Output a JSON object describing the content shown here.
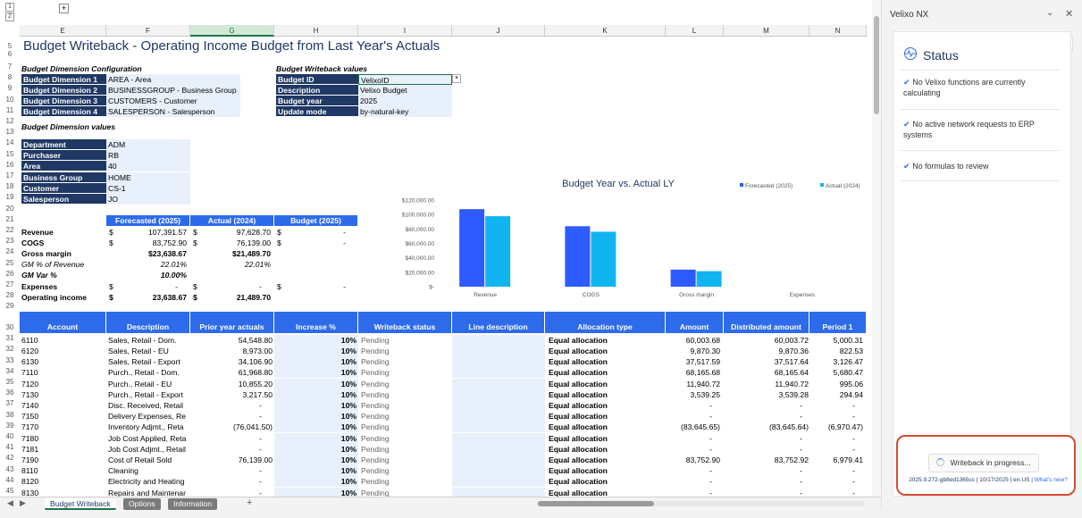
{
  "outline": {
    "level1": "1",
    "level2": "2",
    "expand": "+"
  },
  "columns": [
    "E",
    "F",
    "G",
    "H",
    "I",
    "J",
    "K",
    "L",
    "M",
    "N"
  ],
  "sheet_title": "Budget Writeback - Operating Income Budget from Last Year's Actuals",
  "dim_config": {
    "header": "Budget Dimension Configuration",
    "rows": [
      {
        "label": "Budget Dimension 1",
        "value": "AREA - Area"
      },
      {
        "label": "Budget Dimension 2",
        "value": "BUSINESSGROUP - Business Group"
      },
      {
        "label": "Budget Dimension 3",
        "value": "CUSTOMERS - Customer"
      },
      {
        "label": "Budget Dimension 4",
        "value": "SALESPERSON - Salesperson"
      }
    ]
  },
  "writeback_values": {
    "header": "Budget Writeback values",
    "rows": [
      {
        "label": "Budget ID",
        "value": "VelixoID"
      },
      {
        "label": "Description",
        "value": "Velixo Budget"
      },
      {
        "label": "Budget year",
        "value": "2025"
      },
      {
        "label": "Update mode",
        "value": "by-natural-key"
      }
    ]
  },
  "dim_values": {
    "header": "Budget Dimension values",
    "rows": [
      {
        "label": "Department",
        "value": "ADM"
      },
      {
        "label": "Purchaser",
        "value": "RB"
      },
      {
        "label": "Area",
        "value": "40"
      },
      {
        "label": "Business Group",
        "value": "HOME"
      },
      {
        "label": "Customer",
        "value": "CS-1"
      },
      {
        "label": "Salesperson",
        "value": "JO"
      }
    ]
  },
  "summary": {
    "headers": [
      "Forecasted (2025)",
      "Actual (2024)",
      "Budget (2025)"
    ],
    "currency": "$",
    "rows": [
      {
        "label": "Revenue",
        "f": "107,391.57",
        "a": "97,628.70",
        "b": "-"
      },
      {
        "label": "COGS",
        "f": "83,752.90",
        "a": "76,139.00",
        "b": "-"
      },
      {
        "label": "Gross margin",
        "f": "$23,638.67",
        "a": "$21,489.70",
        "b": ""
      },
      {
        "label": "GM % of Revenue",
        "f": "22.01%",
        "a": "22.01%",
        "b": ""
      },
      {
        "label": "GM Var %",
        "f": "10.00%",
        "a": "",
        "b": ""
      },
      {
        "label": "Expenses",
        "f": "-",
        "a": "-",
        "b": "-"
      },
      {
        "label": "Operating income",
        "f": "23,638.67",
        "a": "21,489.70",
        "b": ""
      }
    ]
  },
  "row_numbers": [
    "5",
    "6",
    "7",
    "8",
    "9",
    "10",
    "11",
    "12",
    "13",
    "14",
    "15",
    "16",
    "17",
    "18",
    "19",
    "20",
    "21",
    "22",
    "23",
    "24",
    "25",
    "26",
    "27",
    "28",
    "29",
    "30",
    "31",
    "32",
    "33",
    "34",
    "35",
    "36",
    "37",
    "38",
    "39",
    "40",
    "41",
    "42",
    "43",
    "44",
    "45"
  ],
  "table": {
    "headers": [
      "Account",
      "Description",
      "Prior year actuals",
      "Increase %",
      "Writeback status",
      "Line description",
      "Allocation type",
      "Amount",
      "Distributed amount",
      "Period 1"
    ],
    "rows": [
      {
        "acct": "6110",
        "desc": "Sales, Retail - Dom.",
        "prior": "54,548.80",
        "inc": "10%",
        "status": "Pending",
        "alloc": "Equal allocation",
        "amt": "60,003.68",
        "dist": "60,003.72",
        "p1": "5,000.31"
      },
      {
        "acct": "6120",
        "desc": "Sales, Retail - EU",
        "prior": "8,973.00",
        "inc": "10%",
        "status": "Pending",
        "alloc": "Equal allocation",
        "amt": "9,870.30",
        "dist": "9,870.36",
        "p1": "822.53"
      },
      {
        "acct": "6130",
        "desc": "Sales, Retail - Export",
        "prior": "34,106.90",
        "inc": "10%",
        "status": "Pending",
        "alloc": "Equal allocation",
        "amt": "37,517.59",
        "dist": "37,517.64",
        "p1": "3,126.47"
      },
      {
        "acct": "7110",
        "desc": "Purch., Retail - Dom.",
        "prior": "61,968.80",
        "inc": "10%",
        "status": "Pending",
        "alloc": "Equal allocation",
        "amt": "68,165.68",
        "dist": "68,165.64",
        "p1": "5,680.47"
      },
      {
        "acct": "7120",
        "desc": "Purch., Retail - EU",
        "prior": "10,855.20",
        "inc": "10%",
        "status": "Pending",
        "alloc": "Equal allocation",
        "amt": "11,940.72",
        "dist": "11,940.72",
        "p1": "995.06"
      },
      {
        "acct": "7130",
        "desc": "Purch., Retail - Export",
        "prior": "3,217.50",
        "inc": "10%",
        "status": "Pending",
        "alloc": "Equal allocation",
        "amt": "3,539.25",
        "dist": "3,539.28",
        "p1": "294.94"
      },
      {
        "acct": "7140",
        "desc": "Disc. Received, Retail",
        "prior": "-",
        "inc": "10%",
        "status": "Pending",
        "alloc": "Equal allocation",
        "amt": "-",
        "dist": "-",
        "p1": "-"
      },
      {
        "acct": "7150",
        "desc": "Delivery Expenses, Re",
        "prior": "-",
        "inc": "10%",
        "status": "Pending",
        "alloc": "Equal allocation",
        "amt": "-",
        "dist": "-",
        "p1": "-"
      },
      {
        "acct": "7170",
        "desc": "Inventory Adjmt., Reta",
        "prior": "(76,041.50)",
        "inc": "10%",
        "status": "Pending",
        "alloc": "Equal allocation",
        "amt": "(83,645.65)",
        "dist": "(83,645.64)",
        "p1": "(6,970.47)"
      },
      {
        "acct": "7180",
        "desc": "Job Cost Applied, Reta",
        "prior": "-",
        "inc": "10%",
        "status": "Pending",
        "alloc": "Equal allocation",
        "amt": "-",
        "dist": "-",
        "p1": "-"
      },
      {
        "acct": "7181",
        "desc": "Job Cost Adjmt., Retail",
        "prior": "-",
        "inc": "10%",
        "status": "Pending",
        "alloc": "Equal allocation",
        "amt": "-",
        "dist": "-",
        "p1": "-"
      },
      {
        "acct": "7190",
        "desc": "Cost of Retail Sold",
        "prior": "76,139.00",
        "inc": "10%",
        "status": "Pending",
        "alloc": "Equal allocation",
        "amt": "83,752.90",
        "dist": "83,752.92",
        "p1": "6,979.41"
      },
      {
        "acct": "8110",
        "desc": "Cleaning",
        "prior": "-",
        "inc": "10%",
        "status": "Pending",
        "alloc": "Equal allocation",
        "amt": "-",
        "dist": "-",
        "p1": "-"
      },
      {
        "acct": "8120",
        "desc": "Electricity and Heating",
        "prior": "-",
        "inc": "10%",
        "status": "Pending",
        "alloc": "Equal allocation",
        "amt": "-",
        "dist": "-",
        "p1": "-"
      },
      {
        "acct": "8130",
        "desc": "Repairs and Maintenar",
        "prior": "-",
        "inc": "10%",
        "status": "Pending",
        "alloc": "Equal allocation",
        "amt": "-",
        "dist": "-",
        "p1": "-"
      }
    ]
  },
  "chart_data": {
    "type": "bar",
    "title": "Budget Year vs. Actual LY",
    "categories": [
      "Revenue",
      "COGS",
      "Gross margin",
      "Expenses"
    ],
    "series": [
      {
        "name": "Forecasted (2025)",
        "color": "#2e5bff",
        "values": [
          107391.57,
          83752.9,
          23638.67,
          0
        ]
      },
      {
        "name": "Actual (2024)",
        "color": "#10b4f0",
        "values": [
          97628.7,
          76139.0,
          21489.7,
          0
        ]
      }
    ],
    "y_ticks": [
      "$120,000.00",
      "$100,000.00",
      "$80,000.00",
      "$60,000.00",
      "$40,000.00",
      "$20,000.00",
      "$-"
    ],
    "ylim": [
      0,
      120000
    ],
    "legend": "top-right",
    "grid": false
  },
  "tabs": [
    "Budget Writeback",
    "Options",
    "Information"
  ],
  "tab_add": "+",
  "pane": {
    "title": "Velixo NX",
    "status_title": "Status",
    "items": [
      "No Velixo functions are currently calculating",
      "No active network requests to ERP systems",
      "No formulas to review"
    ],
    "progress_label": "Writeback in progress...",
    "version": "2025.9.272-gb8ed1365cc | 10/17/2025 | en-US |",
    "whats_new": "What's new?"
  },
  "colors": {
    "accent": "#2e6bea",
    "navy": "#1f3864",
    "highlight": "#d74a33"
  }
}
